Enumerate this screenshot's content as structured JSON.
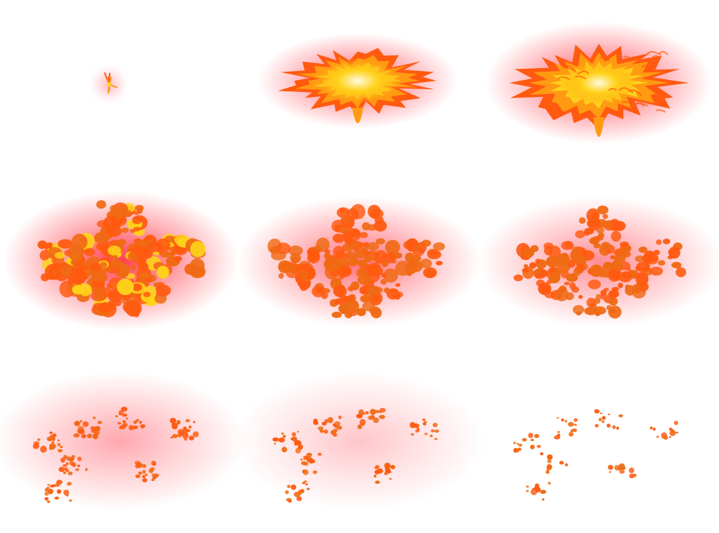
{
  "sprite_sheet": {
    "columns": 3,
    "rows": 3,
    "frames": [
      {
        "stage": "spark",
        "glow_strength": 0.15,
        "core_brightness": 0.9,
        "debris_density": 0.0
      },
      {
        "stage": "flash",
        "glow_strength": 0.85,
        "core_brightness": 1.0,
        "debris_density": 0.1
      },
      {
        "stage": "fireball",
        "glow_strength": 0.95,
        "core_brightness": 0.75,
        "debris_density": 0.3
      },
      {
        "stage": "billow",
        "glow_strength": 1.0,
        "core_brightness": 0.15,
        "debris_density": 1.0
      },
      {
        "stage": "dissipate",
        "glow_strength": 0.75,
        "core_brightness": 0.0,
        "debris_density": 0.8
      },
      {
        "stage": "dissipate",
        "glow_strength": 0.6,
        "core_brightness": 0.0,
        "debris_density": 0.65
      },
      {
        "stage": "embers",
        "glow_strength": 0.45,
        "core_brightness": 0.0,
        "debris_density": 0.5
      },
      {
        "stage": "embers",
        "glow_strength": 0.3,
        "core_brightness": 0.0,
        "debris_density": 0.38
      },
      {
        "stage": "embers",
        "glow_strength": 0.0,
        "core_brightness": 0.0,
        "debris_density": 0.25
      }
    ]
  },
  "colors": {
    "background": "#ffffff",
    "glow": "#ff2a3a",
    "flame_outer": "#ff5a10",
    "flame_mid": "#ff9a12",
    "flame_inner": "#ffd21a",
    "core": "#fffbe0",
    "ember": "#f06a14"
  }
}
